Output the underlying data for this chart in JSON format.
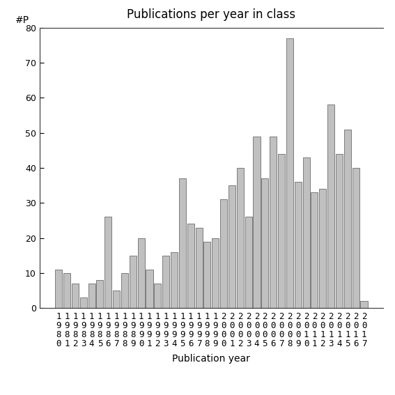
{
  "title": "Publications per year in class",
  "xlabel": "Publication year",
  "ylabel": "#P",
  "years": [
    "1980",
    "1981",
    "1982",
    "1983",
    "1984",
    "1985",
    "1986",
    "1987",
    "1988",
    "1989",
    "1990",
    "1991",
    "1992",
    "1993",
    "1994",
    "1995",
    "1996",
    "1997",
    "1998",
    "1999",
    "2000",
    "2001",
    "2002",
    "2003",
    "2004",
    "2005",
    "2006",
    "2007",
    "2008",
    "2009",
    "2010",
    "2011",
    "2012",
    "2013",
    "2014",
    "2015",
    "2016",
    "2017"
  ],
  "values": [
    11,
    10,
    7,
    3,
    7,
    8,
    26,
    5,
    10,
    15,
    20,
    11,
    7,
    15,
    16,
    37,
    24,
    23,
    19,
    20,
    31,
    35,
    40,
    26,
    49,
    37,
    49,
    44,
    77,
    36,
    43,
    33,
    34,
    58,
    44,
    51,
    40,
    2
  ],
  "bar_color": "#c0c0c0",
  "bar_edgecolor": "#555555",
  "ylim": [
    0,
    80
  ],
  "yticks": [
    0,
    10,
    20,
    30,
    40,
    50,
    60,
    70,
    80
  ],
  "bg_color": "#ffffff",
  "title_fontsize": 12,
  "axis_label_fontsize": 10,
  "tick_fontsize": 9
}
